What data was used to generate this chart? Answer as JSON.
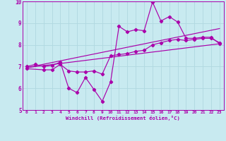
{
  "background_color": "#c8eaf0",
  "grid_color": "#b0d8e0",
  "line_color": "#aa00aa",
  "xlabel": "Windchill (Refroidissement éolien,°C)",
  "xlim": [
    -0.5,
    23.5
  ],
  "ylim": [
    5,
    10
  ],
  "yticks": [
    5,
    6,
    7,
    8,
    9,
    10
  ],
  "xticks": [
    0,
    1,
    2,
    3,
    4,
    5,
    6,
    7,
    8,
    9,
    10,
    11,
    12,
    13,
    14,
    15,
    16,
    17,
    18,
    19,
    20,
    21,
    22,
    23
  ],
  "line1_x": [
    0,
    1,
    2,
    3,
    4,
    5,
    6,
    7,
    8,
    9,
    10,
    11,
    12,
    13,
    14,
    15,
    16,
    17,
    18,
    19,
    20,
    21,
    22,
    23
  ],
  "line1_y": [
    7.0,
    7.1,
    7.0,
    7.05,
    7.2,
    6.0,
    5.8,
    6.5,
    5.95,
    5.4,
    6.3,
    8.85,
    8.6,
    8.7,
    8.65,
    9.97,
    9.1,
    9.3,
    9.05,
    8.3,
    8.3,
    8.35,
    8.35,
    8.05
  ],
  "line2_x": [
    0,
    2,
    3,
    4,
    5,
    6,
    7,
    8,
    9,
    10,
    11,
    12,
    13,
    14,
    15,
    16,
    17,
    18,
    19,
    20,
    21,
    22,
    23
  ],
  "line2_y": [
    6.9,
    6.85,
    6.85,
    7.1,
    6.8,
    6.75,
    6.75,
    6.8,
    6.65,
    7.5,
    7.55,
    7.6,
    7.7,
    7.75,
    8.0,
    8.1,
    8.2,
    8.25,
    8.2,
    8.25,
    8.3,
    8.3,
    8.1
  ],
  "line3_x": [
    0,
    23
  ],
  "line3_y": [
    6.95,
    8.75
  ],
  "line4_x": [
    0,
    23
  ],
  "line4_y": [
    6.95,
    8.05
  ]
}
